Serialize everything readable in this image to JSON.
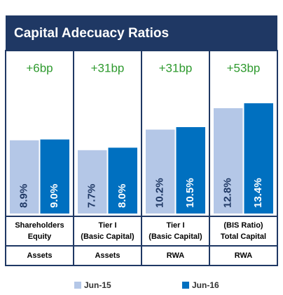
{
  "chart_data": {
    "type": "bar",
    "title": "Capital Adecuacy Ratios",
    "categories": [
      [
        "Shareholders",
        "Equity"
      ],
      [
        "Tier I",
        "(Basic Capital)"
      ],
      [
        "Tier I",
        "(Basic Capital)"
      ],
      [
        "(BIS Ratio)",
        "Total Capital"
      ]
    ],
    "denominators": [
      "Assets",
      "Assets",
      "RWA",
      "RWA"
    ],
    "annotations": [
      "+6bp",
      "+31bp",
      "+31bp",
      "+53bp"
    ],
    "series": [
      {
        "name": "Jun-15",
        "color": "#b4c7e7",
        "label_color": "#1f3864",
        "values": [
          8.9,
          7.7,
          10.2,
          12.8
        ],
        "value_labels": [
          "8.9%",
          "7.7%",
          "10.2%",
          "12.8%"
        ]
      },
      {
        "name": "Jun-16",
        "color": "#0070c0",
        "label_color": "#ffffff",
        "values": [
          9.0,
          8.0,
          10.5,
          13.4
        ],
        "value_labels": [
          "9.0%",
          "8.0%",
          "10.5%",
          "13.4%"
        ]
      }
    ],
    "ylim": [
      0,
      14
    ]
  }
}
